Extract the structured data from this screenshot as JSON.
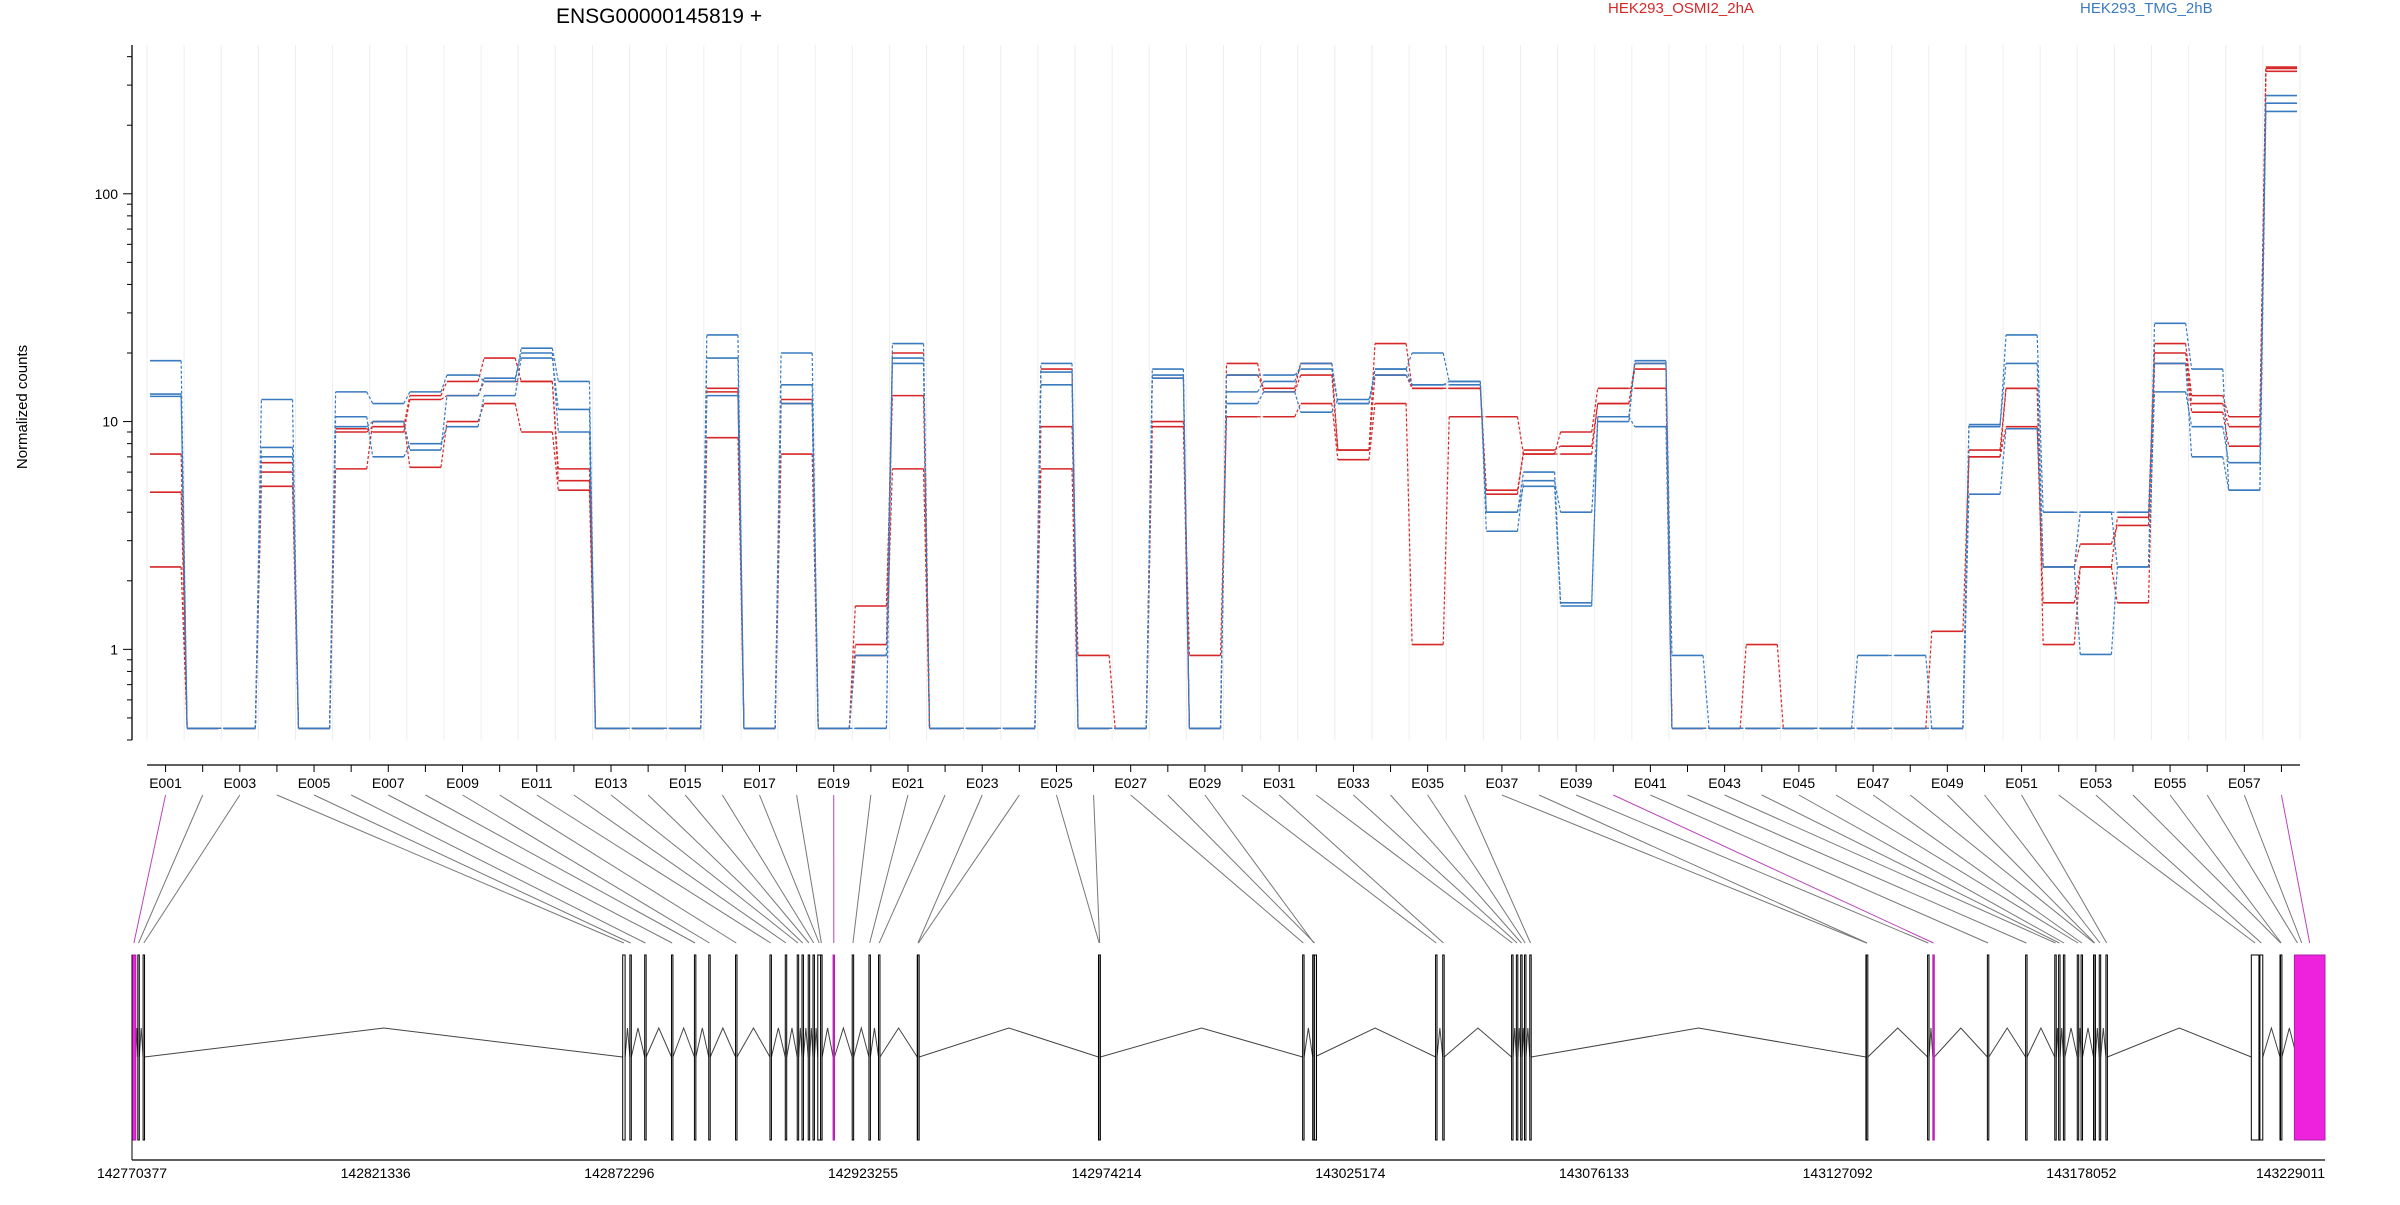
{
  "chart_data": {
    "type": "line",
    "title": "ENSG00000145819 +",
    "ylabel": "Normalized counts",
    "yscale": "log",
    "ylim": [
      0.4,
      450
    ],
    "yticks": [
      1,
      10,
      100
    ],
    "legend": [
      {
        "name": "HEK293_OSMI2_2hA",
        "color": "#d62728"
      },
      {
        "name": "HEK293_TMG_2hB",
        "color": "#3a7bbf"
      }
    ],
    "exons": [
      "E001",
      "E002",
      "E003",
      "E004",
      "E005",
      "E006",
      "E007",
      "E008",
      "E009",
      "E010",
      "E011",
      "E012",
      "E013",
      "E014",
      "E015",
      "E016",
      "E017",
      "E018",
      "E019",
      "E020",
      "E021",
      "E022",
      "E023",
      "E024",
      "E025",
      "E026",
      "E027",
      "E028",
      "E029",
      "E030",
      "E031",
      "E032",
      "E033",
      "E034",
      "E035",
      "E036",
      "E037",
      "E038",
      "E039",
      "E040",
      "E041",
      "E042",
      "E043",
      "E044",
      "E045",
      "E046",
      "E047",
      "E048",
      "E049",
      "E050",
      "E051",
      "E052",
      "E053",
      "E054",
      "E055",
      "E056",
      "E057",
      "E058"
    ],
    "exon_tick_labels": [
      "E001",
      "E003",
      "E005",
      "E007",
      "E009",
      "E011",
      "E013",
      "E015",
      "E017",
      "E019",
      "E021",
      "E023",
      "E025",
      "E027",
      "E029",
      "E031",
      "E033",
      "E035",
      "E037",
      "E039",
      "E041",
      "E043",
      "E045",
      "E047",
      "E049",
      "E051",
      "E053",
      "E055",
      "E057"
    ],
    "highlighted_exons": [
      "E001",
      "E019",
      "E040",
      "E058"
    ],
    "series": [
      {
        "name": "HEK293_OSMI2_2hA",
        "group": 0,
        "values": [
          7.2,
          0.45,
          0.45,
          6.0,
          0.45,
          9.0,
          9.5,
          13,
          15,
          19,
          15,
          5.5,
          0.45,
          0.45,
          0.45,
          14,
          0.45,
          12,
          0.45,
          1.05,
          20,
          0.45,
          0.45,
          0.45,
          17,
          0.45,
          0.45,
          15.5,
          0.45,
          16,
          14,
          18,
          7.5,
          22,
          14,
          14,
          4.8,
          7.5,
          7.8,
          12,
          18,
          0.45,
          0.45,
          0.45,
          0.45,
          0.45,
          0.45,
          0.45,
          0.45,
          7.5,
          14,
          2.3,
          2.9,
          3.5,
          20,
          12,
          9.5,
          355
        ]
      },
      {
        "name": "HEK293_OSMI2_2hA",
        "group": 0,
        "values": [
          4.9,
          0.45,
          0.45,
          5.2,
          0.45,
          6.2,
          10,
          6.3,
          10,
          12,
          9,
          5,
          0.45,
          0.45,
          0.45,
          8.5,
          0.45,
          7.2,
          0.45,
          0.94,
          6.2,
          0.45,
          0.45,
          0.45,
          9.5,
          0.94,
          0.45,
          9.5,
          0.94,
          10.5,
          10.5,
          12,
          6.8,
          12,
          1.05,
          10.5,
          10.5,
          7.2,
          9,
          14,
          14,
          0.45,
          0.45,
          1.05,
          0.45,
          0.45,
          0.45,
          0.45,
          0.45,
          7.0,
          14,
          1.05,
          2.3,
          1.6,
          18,
          11,
          7.8,
          345
        ]
      },
      {
        "name": "HEK293_OSMI2_2hA",
        "group": 0,
        "values": [
          2.3,
          0.45,
          0.45,
          6.6,
          0.45,
          9.3,
          9.0,
          12.5,
          13,
          15,
          15,
          6.2,
          0.45,
          0.45,
          0.45,
          13.5,
          0.45,
          12.5,
          0.45,
          1.55,
          13,
          0.45,
          0.45,
          0.45,
          6.2,
          0.45,
          0.45,
          10,
          0.45,
          18,
          13.5,
          16,
          7.5,
          16,
          14,
          14,
          5.0,
          7.2,
          7.2,
          12,
          17,
          0.45,
          0.45,
          0.45,
          0.45,
          0.45,
          0.45,
          0.45,
          1.2,
          7.0,
          9.5,
          1.6,
          2.3,
          3.8,
          22,
          13,
          10.5,
          360
        ]
      },
      {
        "name": "HEK293_TMG_2hB",
        "group": 1,
        "values": [
          18.5,
          0.45,
          0.45,
          12.5,
          0.45,
          13.5,
          12,
          13.5,
          16,
          15,
          21,
          15,
          0.45,
          0.45,
          0.45,
          24,
          0.45,
          20,
          0.45,
          0.45,
          22,
          0.45,
          0.45,
          0.45,
          18,
          0.45,
          0.45,
          17,
          0.45,
          16,
          16,
          17,
          12,
          17,
          20,
          15,
          3.3,
          5.5,
          4.0,
          10,
          18.5,
          0.94,
          0.45,
          0.45,
          0.45,
          0.45,
          0.94,
          0.94,
          0.45,
          9.5,
          24,
          4.0,
          4.0,
          2.3,
          27,
          17,
          5.0,
          230
        ]
      },
      {
        "name": "HEK293_TMG_2hB",
        "group": 1,
        "values": [
          13.2,
          0.45,
          0.45,
          7.7,
          0.45,
          10.5,
          7.0,
          8,
          9.5,
          13,
          19,
          11.3,
          0.45,
          0.45,
          0.45,
          19,
          0.45,
          14.5,
          0.45,
          0.94,
          19,
          0.45,
          0.45,
          0.45,
          14.5,
          0.45,
          0.45,
          15.5,
          0.45,
          12,
          13.5,
          11,
          12.5,
          16,
          14.5,
          14.5,
          4.0,
          6.0,
          1.6,
          10.5,
          18,
          0.45,
          0.45,
          0.45,
          0.45,
          0.45,
          0.45,
          0.45,
          0.45,
          9.7,
          18,
          2.3,
          0.95,
          2.3,
          13.5,
          9.5,
          6.6,
          250
        ]
      },
      {
        "name": "HEK293_TMG_2hB",
        "group": 1,
        "values": [
          12.9,
          0.45,
          0.45,
          7.0,
          0.45,
          9.5,
          10,
          7.5,
          13,
          15.5,
          20,
          9,
          0.45,
          0.45,
          0.45,
          13,
          0.45,
          12,
          0.45,
          0.45,
          18,
          0.45,
          0.45,
          0.45,
          16.5,
          0.45,
          0.45,
          16,
          0.45,
          13.5,
          15,
          18,
          12,
          17,
          14.5,
          15,
          4.0,
          5.2,
          1.55,
          10.5,
          9.5,
          0.45,
          0.45,
          0.45,
          0.45,
          0.45,
          0.45,
          0.45,
          0.45,
          4.8,
          9.3,
          2.3,
          4.0,
          4.0,
          18,
          7,
          5.0,
          270
        ]
      }
    ],
    "gene_model": {
      "coord_ticks": [
        "142770377",
        "142821336",
        "142872296",
        "142923255",
        "142974214",
        "143025174",
        "143076133",
        "143127092",
        "143178052",
        "143229011"
      ],
      "coord_range": [
        142770377,
        143229011
      ],
      "exon_positions": [
        142770377,
        142771600,
        142772700,
        142873000,
        142874500,
        142877600,
        142883200,
        142888000,
        142891000,
        142896600,
        142903800,
        142907000,
        142909500,
        142910500,
        142911800,
        142912800,
        142913800,
        142914400,
        142917000,
        142921000,
        142924500,
        142926500,
        142934600,
        142934700,
        142972500,
        142972600,
        143015200,
        143017300,
        143017400,
        143043000,
        143044500,
        143058900,
        143059900,
        143060800,
        143061600,
        143062700,
        143133000,
        143133100,
        143145900,
        143147000,
        143158400,
        143166400,
        143172500,
        143173300,
        143174300,
        143177200,
        143178000,
        143180600,
        143180700,
        143181800,
        143183200,
        143213600,
        143215400,
        143219600,
        143219700,
        143223100,
        143224000,
        143229011
      ],
      "exon_widths_bp": [
        800,
        300,
        300,
        500,
        300,
        300,
        300,
        300,
        300,
        300,
        300,
        300,
        300,
        300,
        300,
        300,
        600,
        300,
        300,
        300,
        300,
        300,
        300,
        300,
        300,
        300,
        300,
        800,
        300,
        300,
        300,
        300,
        300,
        300,
        300,
        300,
        300,
        300,
        300,
        300,
        300,
        300,
        300,
        300,
        300,
        300,
        300,
        300,
        300,
        300,
        300,
        1600,
        600,
        300,
        300,
        300,
        300,
        6400
      ]
    }
  }
}
